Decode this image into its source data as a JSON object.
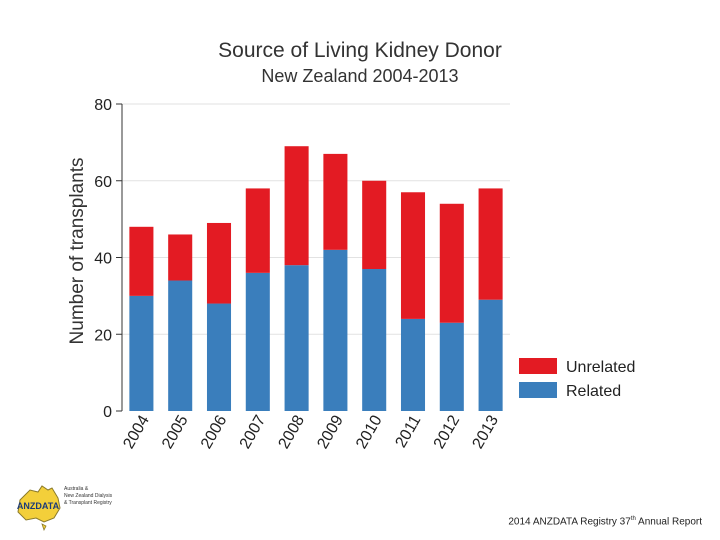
{
  "chart_data": {
    "type": "bar",
    "stacked": true,
    "title": "Source of Living Kidney Donor",
    "subtitle": "New Zealand 2004-2013",
    "xlabel": "",
    "ylabel": "Number of transplants",
    "ylim": [
      0,
      80
    ],
    "yticks": [
      0,
      20,
      40,
      60,
      80
    ],
    "grid": true,
    "legend_position": "right-bottom",
    "categories": [
      "2004",
      "2005",
      "2006",
      "2007",
      "2008",
      "2009",
      "2010",
      "2011",
      "2012",
      "2013"
    ],
    "series": [
      {
        "name": "Related",
        "color": "#3a7ebc",
        "values": [
          30,
          34,
          28,
          36,
          38,
          42,
          37,
          24,
          23,
          29
        ]
      },
      {
        "name": "Unrelated",
        "color": "#e31b23",
        "values": [
          18,
          12,
          21,
          22,
          31,
          25,
          23,
          33,
          31,
          29
        ]
      }
    ],
    "legend": [
      "Unrelated",
      "Related"
    ]
  },
  "footer": {
    "text_prefix": "2014 ANZDATA Registry 37",
    "text_sup": "th",
    "text_suffix": " Annual Report"
  },
  "logo": {
    "mark": "ANZDATA",
    "text": "Australia &\nNew Zealand Dialysis\n& Transplant Registry"
  }
}
